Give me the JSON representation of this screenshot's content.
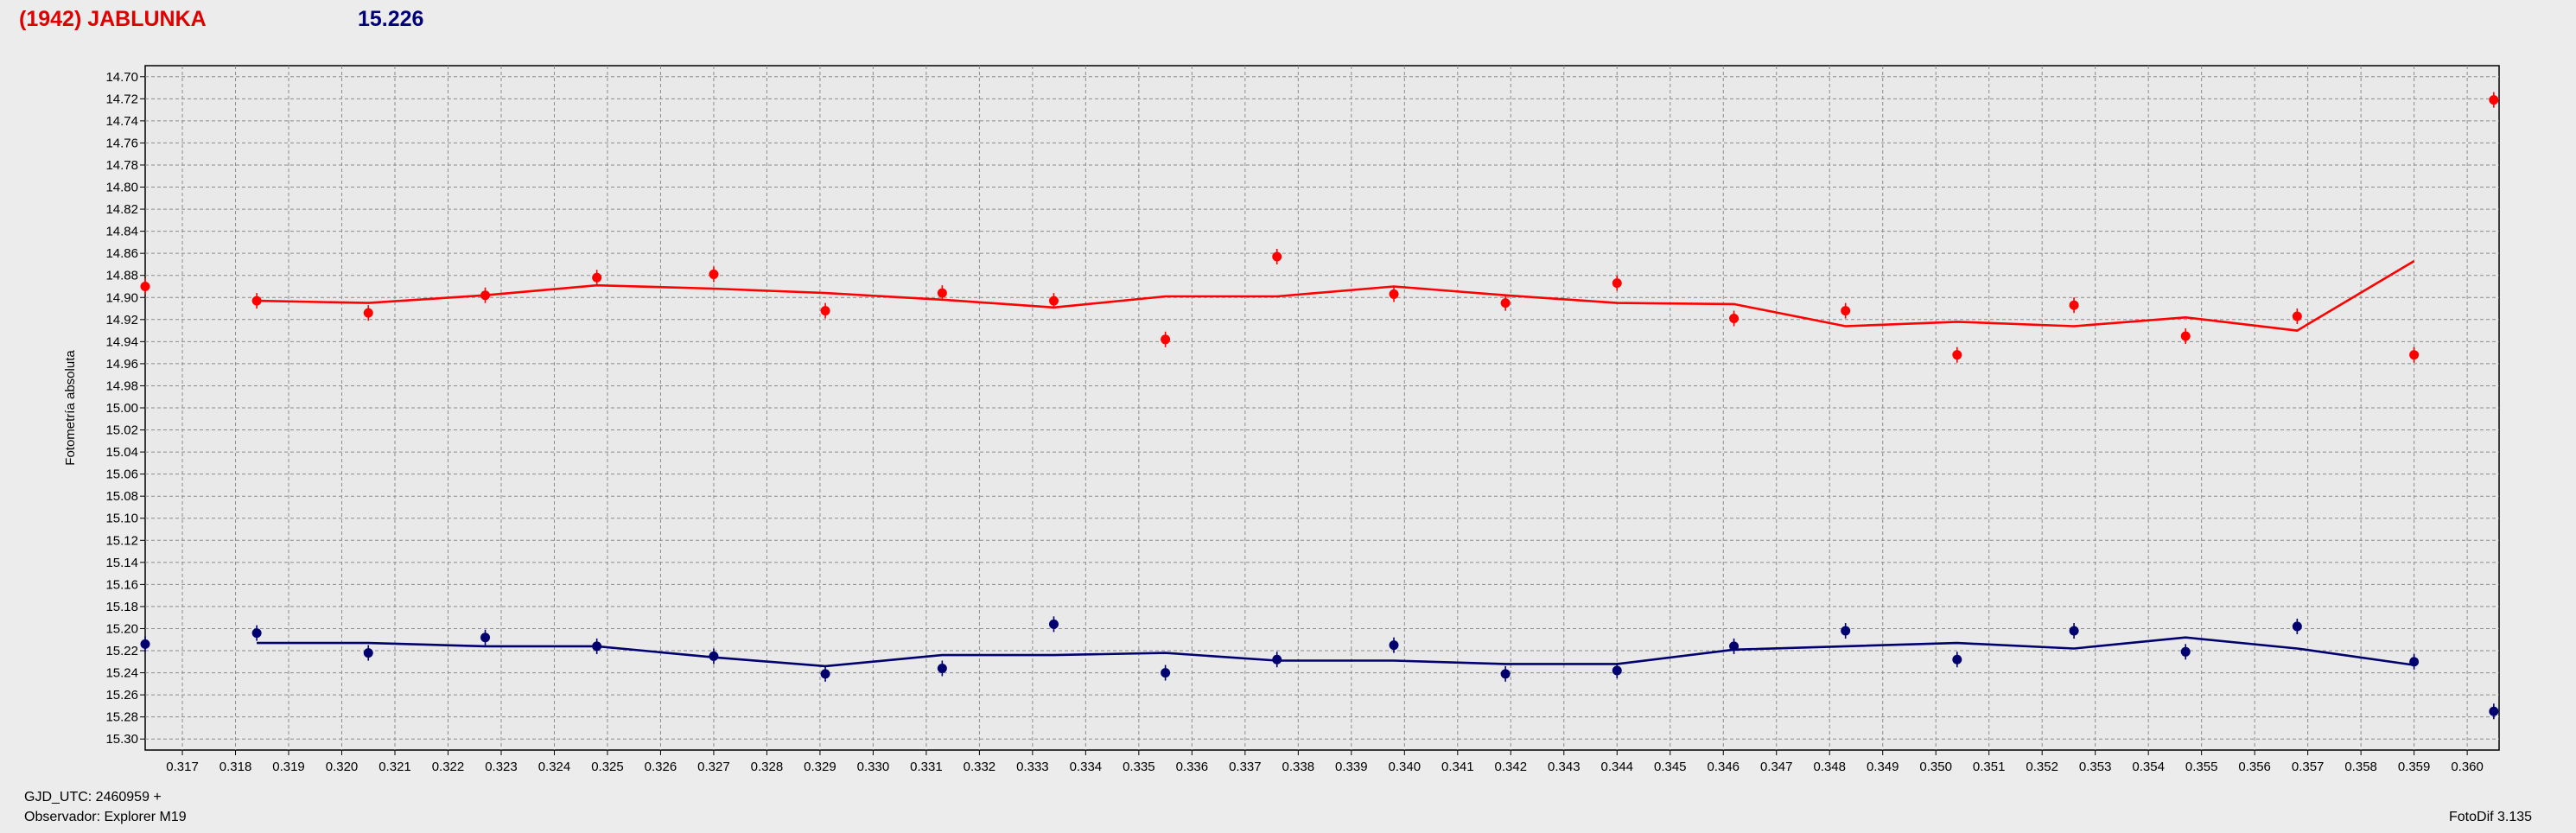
{
  "header": {
    "object_name": "(1942) JABLUNKA",
    "reference_mag": "15.226"
  },
  "footer": {
    "gjd_label": "GJD_UTC: 2460959 +",
    "observer_label": "Observador: Explorer M19",
    "software_label": "FotoDif 3.135"
  },
  "colors": {
    "series_red": "#ff0000",
    "series_blue": "#00006e",
    "grid": "#8c8c8c",
    "plot_bg": "#e9e9e9"
  },
  "chart_data": {
    "type": "scatter",
    "title": "",
    "xlabel": "",
    "ylabel": "Fotometría absoluta",
    "xlim": [
      0.3163,
      0.3606
    ],
    "ylim": [
      15.31,
      14.69
    ],
    "y_inverted": true,
    "grid": true,
    "x_ticks": [
      "0.317",
      "0.318",
      "0.319",
      "0.320",
      "0.321",
      "0.322",
      "0.323",
      "0.324",
      "0.325",
      "0.326",
      "0.327",
      "0.328",
      "0.329",
      "0.330",
      "0.331",
      "0.332",
      "0.333",
      "0.334",
      "0.335",
      "0.336",
      "0.337",
      "0.338",
      "0.339",
      "0.340",
      "0.341",
      "0.342",
      "0.343",
      "0.344",
      "0.345",
      "0.346",
      "0.347",
      "0.348",
      "0.349",
      "0.350",
      "0.351",
      "0.352",
      "0.353",
      "0.354",
      "0.355",
      "0.356",
      "0.357",
      "0.358",
      "0.359",
      "0.360"
    ],
    "y_ticks": [
      "14.70",
      "14.72",
      "14.74",
      "14.76",
      "14.78",
      "14.80",
      "14.82",
      "14.84",
      "14.86",
      "14.88",
      "14.90",
      "14.92",
      "14.94",
      "14.96",
      "14.98",
      "15.00",
      "15.02",
      "15.04",
      "15.06",
      "15.08",
      "15.10",
      "15.12",
      "15.14",
      "15.16",
      "15.18",
      "15.20",
      "15.22",
      "15.24",
      "15.26",
      "15.28",
      "15.30"
    ],
    "series": [
      {
        "color": "#ff0000",
        "points": {
          "x": [
            0.3163,
            0.3184,
            0.3205,
            0.3227,
            0.3248,
            0.327,
            0.3291,
            0.3313,
            0.3334,
            0.3355,
            0.3376,
            0.3398,
            0.3419,
            0.344,
            0.3462,
            0.3483,
            0.3504,
            0.3526,
            0.3547,
            0.3568,
            0.359,
            0.3605
          ],
          "y": [
            14.89,
            14.903,
            14.914,
            14.898,
            14.882,
            14.879,
            14.912,
            14.896,
            14.903,
            14.938,
            14.863,
            14.897,
            14.905,
            14.887,
            14.919,
            14.912,
            14.952,
            14.907,
            14.935,
            14.917,
            14.952,
            14.721
          ]
        },
        "trend": {
          "x": [
            0.3184,
            0.3205,
            0.3227,
            0.3248,
            0.327,
            0.3291,
            0.3313,
            0.3334,
            0.3355,
            0.3376,
            0.3398,
            0.3419,
            0.344,
            0.3462,
            0.3483,
            0.3504,
            0.3526,
            0.3547,
            0.3568,
            0.359
          ],
          "y": [
            14.903,
            14.905,
            14.898,
            14.889,
            14.892,
            14.896,
            14.902,
            14.909,
            14.899,
            14.899,
            14.89,
            14.898,
            14.905,
            14.906,
            14.926,
            14.922,
            14.926,
            14.918,
            14.93,
            14.867
          ]
        }
      },
      {
        "color": "#00006e",
        "points": {
          "x": [
            0.3163,
            0.3184,
            0.3205,
            0.3227,
            0.3248,
            0.327,
            0.3291,
            0.3313,
            0.3334,
            0.3355,
            0.3376,
            0.3398,
            0.3419,
            0.344,
            0.3462,
            0.3483,
            0.3504,
            0.3526,
            0.3547,
            0.3568,
            0.359,
            0.3605
          ],
          "y": [
            15.214,
            15.204,
            15.222,
            15.208,
            15.216,
            15.225,
            15.241,
            15.236,
            15.196,
            15.24,
            15.228,
            15.215,
            15.241,
            15.238,
            15.216,
            15.202,
            15.228,
            15.202,
            15.221,
            15.198,
            15.23,
            15.275
          ]
        },
        "trend": {
          "x": [
            0.3184,
            0.3205,
            0.3227,
            0.3248,
            0.327,
            0.3291,
            0.3313,
            0.3334,
            0.3355,
            0.3376,
            0.3398,
            0.3419,
            0.344,
            0.3462,
            0.3483,
            0.3504,
            0.3526,
            0.3547,
            0.3568,
            0.359
          ],
          "y": [
            15.213,
            15.213,
            15.216,
            15.216,
            15.226,
            15.234,
            15.224,
            15.224,
            15.222,
            15.229,
            15.229,
            15.232,
            15.232,
            15.219,
            15.216,
            15.213,
            15.218,
            15.208,
            15.218,
            15.233
          ]
        }
      }
    ]
  }
}
